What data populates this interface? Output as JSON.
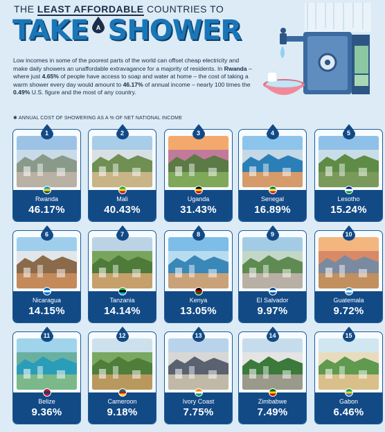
{
  "header": {
    "line1_pre": "THE ",
    "line1_bold": "LEAST AFFORDABLE",
    "line1_post": " COUNTRIES TO",
    "word1": "TAKE",
    "drop_letter": "A",
    "word2": "SHOWER"
  },
  "intro": {
    "p1": "Low incomes in some of the poorest parts of the world can offset cheap electricity and make daily showers an unaffordable extravagance for a majority of residents. In ",
    "country": "Rwanda",
    "p2": " – where just ",
    "stat1": "4.65%",
    "p3": " of people have access to soap and water at home – the cost of taking a warm shower every day would amount to ",
    "stat2": "46.17%",
    "p4": " of annual income – nearly 100 times the ",
    "stat3": "0.49%",
    "p5": " U.S. figure and the most of any country."
  },
  "note": "✱ ANNUAL COST OF SHOWERING AS A % OF NET NATIONAL INCOME",
  "colors": {
    "accent": "#1976b8",
    "navy": "#124a86",
    "bg": "#dcebf5"
  },
  "cards": [
    {
      "rank": "1",
      "country": "Rwanda",
      "pct": "46.17%",
      "flag": [
        "#00a1de",
        "#fad201",
        "#20603d"
      ]
    },
    {
      "rank": "2",
      "country": "Mali",
      "pct": "40.43%",
      "flag": [
        "#14b53a",
        "#fcd116",
        "#ce1126"
      ]
    },
    {
      "rank": "3",
      "country": "Uganda",
      "pct": "31.43%",
      "flag": [
        "#000000",
        "#fcdc04",
        "#d90000"
      ]
    },
    {
      "rank": "4",
      "country": "Senegal",
      "pct": "16.89%",
      "flag": [
        "#00853f",
        "#fdef42",
        "#e31b23"
      ]
    },
    {
      "rank": "5",
      "country": "Lesotho",
      "pct": "15.24%",
      "flag": [
        "#00209f",
        "#ffffff",
        "#009543"
      ]
    },
    {
      "rank": "6",
      "country": "Nicaragua",
      "pct": "14.15%",
      "flag": [
        "#0067c6",
        "#ffffff",
        "#0067c6"
      ]
    },
    {
      "rank": "7",
      "country": "Tanzania",
      "pct": "14.14%",
      "flag": [
        "#1eb53a",
        "#000000",
        "#00a3dd"
      ]
    },
    {
      "rank": "8",
      "country": "Kenya",
      "pct": "13.05%",
      "flag": [
        "#000000",
        "#bb0000",
        "#006600"
      ]
    },
    {
      "rank": "9",
      "country": "El Salvador",
      "pct": "9.97%",
      "flag": [
        "#0047ab",
        "#ffffff",
        "#0047ab"
      ]
    },
    {
      "rank": "10",
      "country": "Guatemala",
      "pct": "9.72%",
      "flag": [
        "#4997d0",
        "#ffffff",
        "#4997d0"
      ]
    },
    {
      "rank": "11",
      "country": "Belize",
      "pct": "9.36%",
      "flag": [
        "#ce1126",
        "#003f87",
        "#ce1126"
      ]
    },
    {
      "rank": "12",
      "country": "Cameroon",
      "pct": "9.18%",
      "flag": [
        "#007a5e",
        "#ce1126",
        "#fcd116"
      ]
    },
    {
      "rank": "13",
      "country": "Ivory Coast",
      "pct": "7.75%",
      "flag": [
        "#f77f00",
        "#ffffff",
        "#009e60"
      ]
    },
    {
      "rank": "14",
      "country": "Zimbabwe",
      "pct": "7.49%",
      "flag": [
        "#006400",
        "#ffd200",
        "#d40000"
      ]
    },
    {
      "rank": "15",
      "country": "Gabon",
      "pct": "6.46%",
      "flag": [
        "#009e60",
        "#fcd116",
        "#3a75c4"
      ]
    }
  ]
}
